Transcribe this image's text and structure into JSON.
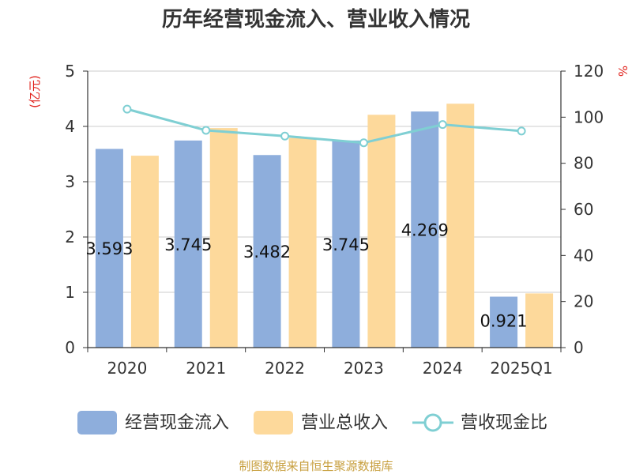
{
  "chart_data": {
    "type": "bar",
    "title": "历年经营现金流入、营业收入情况",
    "categories": [
      "2020",
      "2021",
      "2022",
      "2023",
      "2024",
      "2025Q1"
    ],
    "series": [
      {
        "name": "经营现金流入",
        "kind": "bar",
        "axis": "left",
        "color": "#8eaedc",
        "values": [
          3.593,
          3.745,
          3.482,
          3.745,
          4.269,
          0.921
        ],
        "data_labels": [
          "3.593",
          "3.745",
          "3.482",
          "3.745",
          "4.269",
          "0.921"
        ]
      },
      {
        "name": "营业总收入",
        "kind": "bar",
        "axis": "left",
        "color": "#fdd99b",
        "values": [
          3.47,
          3.97,
          3.79,
          4.21,
          4.41,
          0.98
        ]
      },
      {
        "name": "营收现金比",
        "kind": "line",
        "axis": "right",
        "color": "#7fcfd3",
        "values": [
          103.5,
          94.3,
          91.8,
          88.9,
          96.8,
          94.0
        ]
      }
    ],
    "y_left": {
      "unit": "(亿元)",
      "ylim": [
        0,
        5
      ],
      "ticks": [
        "0",
        "1",
        "2",
        "3",
        "4",
        "5"
      ]
    },
    "y_right": {
      "unit": "%",
      "ylim": [
        0,
        120
      ],
      "ticks": [
        "0",
        "20",
        "40",
        "60",
        "80",
        "100",
        "120"
      ]
    },
    "grid": true,
    "legend_position": "bottom"
  },
  "source": "制图数据来自恒生聚源数据库"
}
